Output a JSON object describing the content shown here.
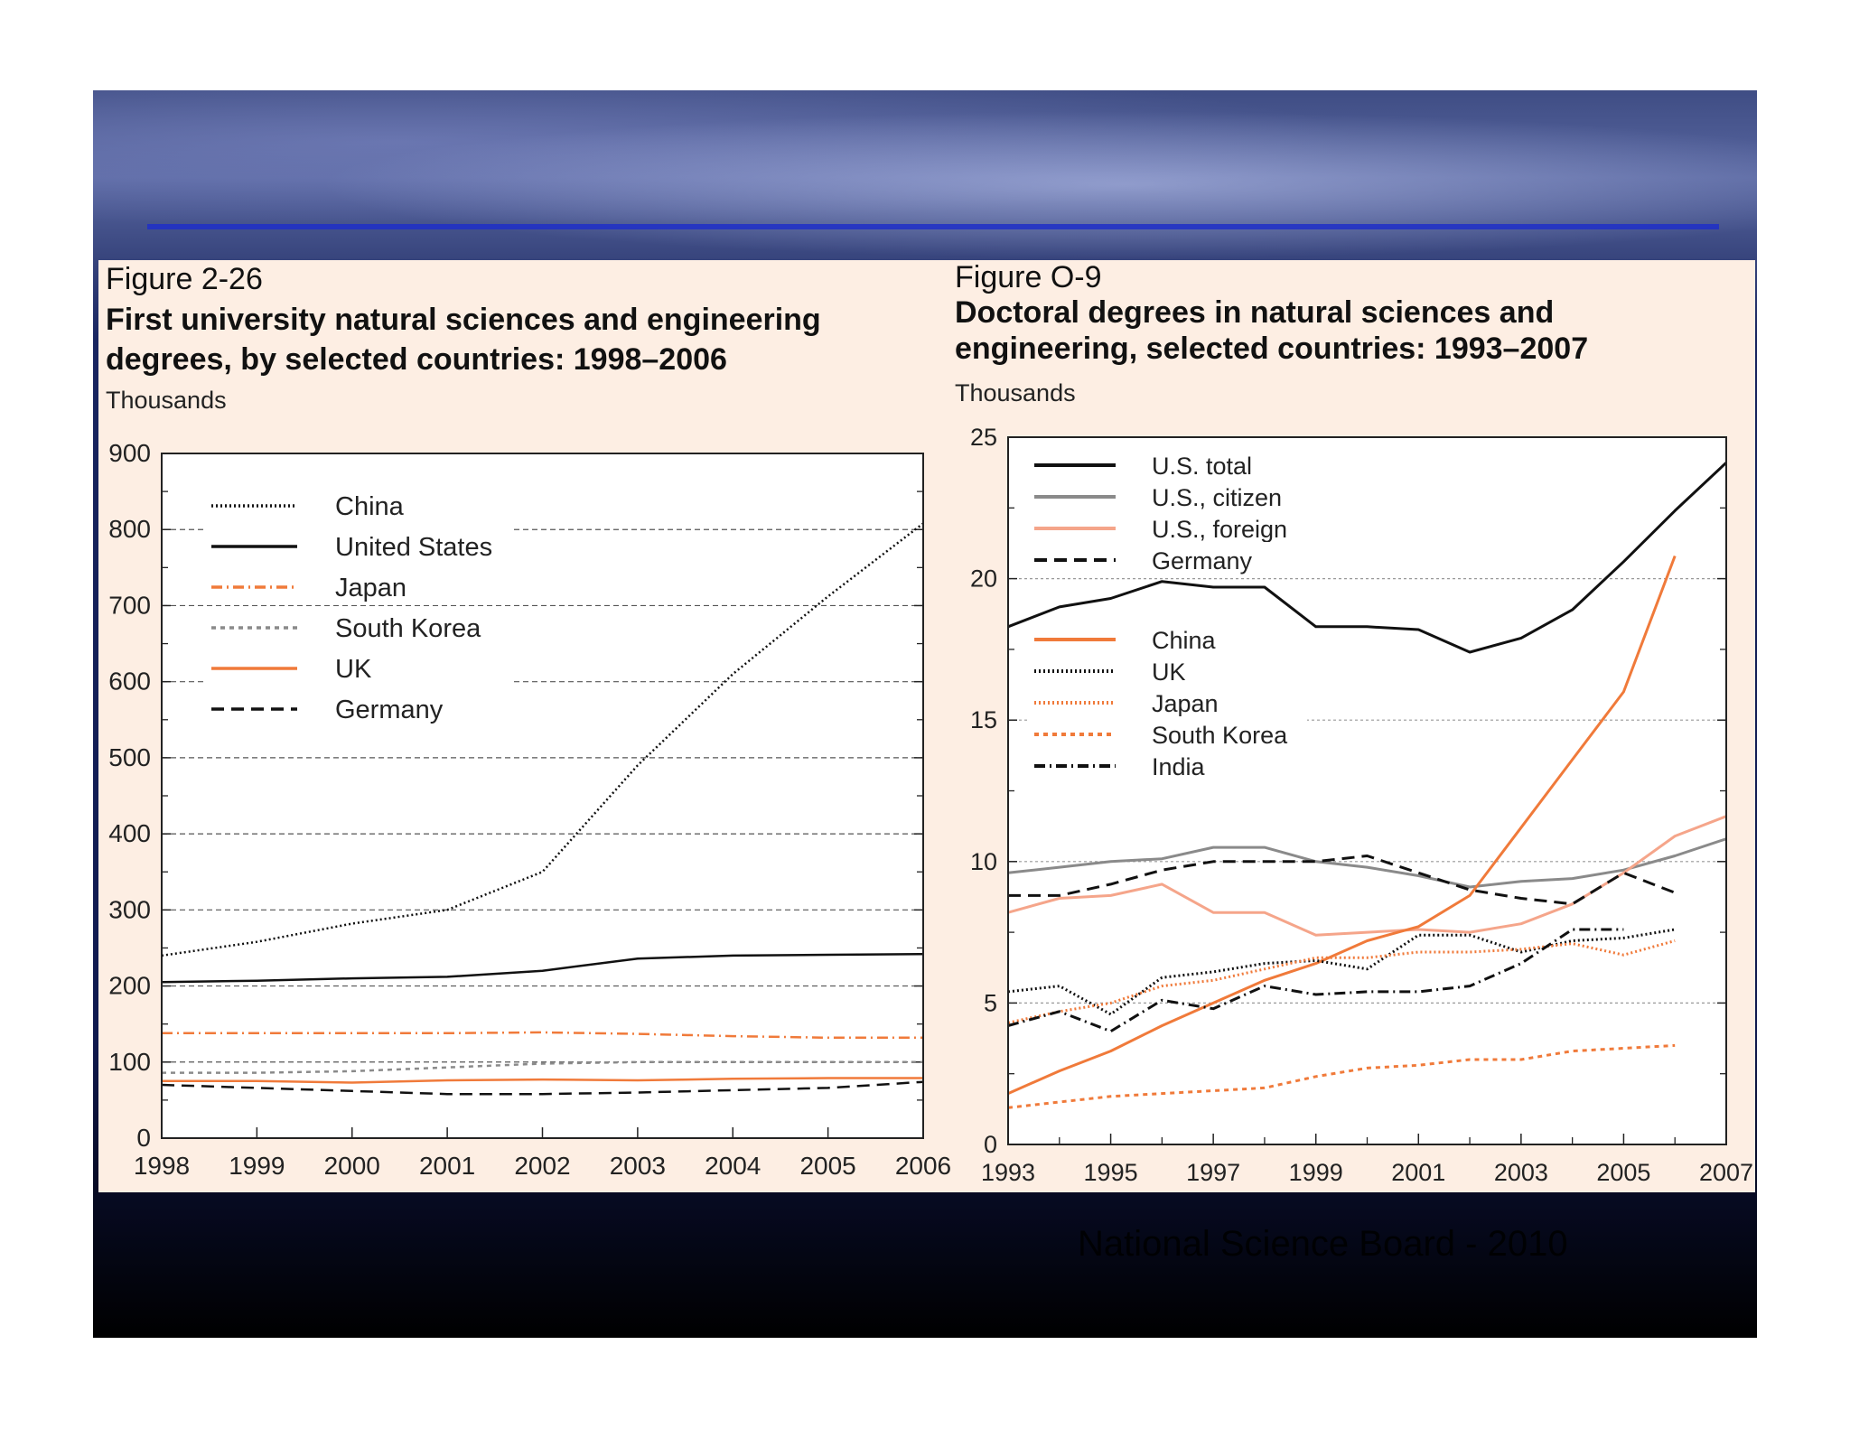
{
  "footer": {
    "credit": "National Science Board - 2010"
  },
  "colors": {
    "black": "#111111",
    "gray": "#8a8a8a",
    "orange": "#f07a3a",
    "light_orange": "#f5a58a",
    "panel": "#fdeee3"
  },
  "chart_data": [
    {
      "type": "line",
      "figure_label": "Figure 2-26",
      "title": "First university natural sciences and engineering degrees, by selected countries: 1998–2006",
      "title_lines": [
        "First university natural sciences and engineering",
        "degrees, by selected countries: 1998–2006"
      ],
      "ylabel": "Thousands",
      "x": [
        1998,
        1999,
        2000,
        2001,
        2002,
        2003,
        2004,
        2005,
        2006
      ],
      "x_ticks": [
        "1998",
        "1999",
        "2000",
        "2001",
        "2002",
        "2003",
        "2004",
        "2005",
        "2006"
      ],
      "y_ticks": [
        "0",
        "100",
        "200",
        "300",
        "400",
        "500",
        "600",
        "700",
        "800",
        "900"
      ],
      "ylim": [
        0,
        900
      ],
      "grid": true,
      "legend": "top-left",
      "series": [
        {
          "name": "China",
          "color": "#111111",
          "style": "dotted",
          "values": [
            240,
            258,
            282,
            300,
            350,
            490,
            610,
            712,
            808
          ]
        },
        {
          "name": "United States",
          "color": "#111111",
          "style": "solid",
          "values": [
            205,
            207,
            210,
            212,
            220,
            236,
            240,
            241,
            242
          ]
        },
        {
          "name": "Japan",
          "color": "#f07a3a",
          "style": "dashdot",
          "values": [
            138,
            138,
            138,
            138,
            139,
            137,
            134,
            132,
            132
          ]
        },
        {
          "name": "South Korea",
          "color": "#8a8a8a",
          "style": "dashed-short",
          "values": [
            86,
            86,
            88,
            93,
            98,
            100,
            100,
            100,
            100
          ]
        },
        {
          "name": "UK",
          "color": "#f07a3a",
          "style": "solid",
          "values": [
            75,
            75,
            73,
            76,
            77,
            76,
            78,
            79,
            79
          ]
        },
        {
          "name": "Germany",
          "color": "#111111",
          "style": "dashed-long",
          "values": [
            70,
            66,
            62,
            58,
            58,
            60,
            63,
            66,
            74
          ]
        }
      ]
    },
    {
      "type": "line",
      "figure_label": "Figure O-9",
      "title": "Doctoral degrees in natural sciences and engineering, selected countries: 1993–2007",
      "title_lines": [
        "Doctoral degrees in natural sciences and",
        "engineering, selected countries: 1993–2007"
      ],
      "ylabel": "Thousands",
      "x": [
        1993,
        1994,
        1995,
        1996,
        1997,
        1998,
        1999,
        2000,
        2001,
        2002,
        2003,
        2004,
        2005,
        2006,
        2007
      ],
      "x_ticks": [
        "1993",
        "1995",
        "1997",
        "1999",
        "2001",
        "2003",
        "2005",
        "2007"
      ],
      "y_ticks": [
        "0",
        "5",
        "10",
        "15",
        "20",
        "25"
      ],
      "ylim": [
        0,
        25
      ],
      "xlim": [
        1993,
        2007
      ],
      "grid": true,
      "legend": "top-left",
      "series": [
        {
          "name": "U.S. total",
          "color": "#111111",
          "style": "solid",
          "x": [
            1993,
            1994,
            1995,
            1996,
            1997,
            1998,
            1999,
            2000,
            2001,
            2002,
            2003,
            2004,
            2005,
            2006,
            2007
          ],
          "values": [
            18.3,
            19.0,
            19.3,
            19.9,
            19.7,
            19.7,
            18.3,
            18.3,
            18.2,
            17.4,
            17.9,
            18.9,
            20.6,
            22.4,
            24.1
          ]
        },
        {
          "name": "U.S., citizen",
          "color": "#8a8a8a",
          "style": "solid",
          "x": [
            1993,
            1994,
            1995,
            1996,
            1997,
            1998,
            1999,
            2000,
            2001,
            2002,
            2003,
            2004,
            2005,
            2006,
            2007
          ],
          "values": [
            9.6,
            9.8,
            10.0,
            10.1,
            10.5,
            10.5,
            10.0,
            9.8,
            9.5,
            9.1,
            9.3,
            9.4,
            9.7,
            10.2,
            10.8
          ]
        },
        {
          "name": "U.S., foreign",
          "color": "#f5a58a",
          "style": "solid",
          "x": [
            1993,
            1994,
            1995,
            1996,
            1997,
            1998,
            1999,
            2000,
            2001,
            2002,
            2003,
            2004,
            2005,
            2006,
            2007
          ],
          "values": [
            8.2,
            8.7,
            8.8,
            9.2,
            8.2,
            8.2,
            7.4,
            7.5,
            7.6,
            7.5,
            7.8,
            8.5,
            9.6,
            10.9,
            11.6
          ]
        },
        {
          "name": "Germany",
          "color": "#111111",
          "style": "dashed-long",
          "x": [
            1993,
            1994,
            1995,
            1996,
            1997,
            1998,
            1999,
            2000,
            2001,
            2002,
            2003,
            2004,
            2005,
            2006
          ],
          "values": [
            8.8,
            8.8,
            9.2,
            9.7,
            10.0,
            10.0,
            10.0,
            10.2,
            9.6,
            9.0,
            8.7,
            8.5,
            9.6,
            8.9
          ]
        },
        {
          "name": "China",
          "color": "#f07a3a",
          "style": "solid",
          "x": [
            1993,
            1994,
            1995,
            1996,
            1997,
            1998,
            1999,
            2000,
            2001,
            2002,
            2003,
            2004,
            2005,
            2006
          ],
          "values": [
            1.8,
            2.6,
            3.3,
            4.2,
            5.0,
            5.8,
            6.4,
            7.2,
            7.7,
            8.8,
            11.2,
            13.6,
            16.0,
            20.8
          ]
        },
        {
          "name": "UK",
          "color": "#111111",
          "style": "dotted",
          "x": [
            1993,
            1994,
            1995,
            1996,
            1997,
            1998,
            1999,
            2000,
            2001,
            2002,
            2003,
            2004,
            2005,
            2006
          ],
          "values": [
            5.4,
            5.6,
            4.6,
            5.9,
            6.1,
            6.4,
            6.5,
            6.2,
            7.4,
            7.4,
            6.8,
            7.2,
            7.3,
            7.6
          ]
        },
        {
          "name": "Japan",
          "color": "#f07a3a",
          "style": "dotted",
          "x": [
            1993,
            1994,
            1995,
            1996,
            1997,
            1998,
            1999,
            2000,
            2001,
            2002,
            2003,
            2004,
            2005,
            2006
          ],
          "values": [
            4.3,
            4.7,
            5.0,
            5.6,
            5.8,
            6.2,
            6.6,
            6.6,
            6.8,
            6.8,
            6.9,
            7.1,
            6.7,
            7.2
          ]
        },
        {
          "name": "South Korea",
          "color": "#f07a3a",
          "style": "dashed-short",
          "x": [
            1993,
            1994,
            1995,
            1996,
            1997,
            1998,
            1999,
            2000,
            2001,
            2002,
            2003,
            2004,
            2005,
            2006
          ],
          "values": [
            1.3,
            1.5,
            1.7,
            1.8,
            1.9,
            2.0,
            2.4,
            2.7,
            2.8,
            3.0,
            3.0,
            3.3,
            3.4,
            3.5
          ]
        },
        {
          "name": "India",
          "color": "#111111",
          "style": "dashdot",
          "x": [
            1993,
            1994,
            1995,
            1996,
            1997,
            1998,
            1999,
            2000,
            2001,
            2002,
            2003,
            2004,
            2005
          ],
          "values": [
            4.2,
            4.7,
            4.0,
            5.1,
            4.8,
            5.6,
            5.3,
            5.4,
            5.4,
            5.6,
            6.4,
            7.6,
            7.6
          ]
        }
      ]
    }
  ]
}
